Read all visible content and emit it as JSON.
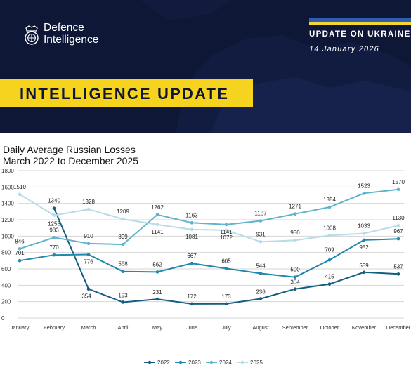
{
  "header": {
    "org_name_line1": "Defence",
    "org_name_line2": "Intelligence",
    "update_title": "UPDATE ON UKRAINE",
    "update_date": "14 January 2026",
    "banner_label": "INTELLIGENCE UPDATE",
    "colors": {
      "navy": "#0f1736",
      "yellow": "#f5d31f",
      "flag_blue": "#2f5db3",
      "flag_yellow": "#f3d72d"
    }
  },
  "chart_data": {
    "type": "line",
    "title_line1": "Daily Average Russian Losses",
    "title_line2": "March 2022 to December 2025",
    "xlabel": "",
    "ylabel": "",
    "categories": [
      "January",
      "February",
      "March",
      "April",
      "May",
      "June",
      "July",
      "August",
      "September",
      "October",
      "November",
      "December"
    ],
    "ylim": [
      0,
      1800
    ],
    "yticks": [
      0,
      200,
      400,
      600,
      800,
      1000,
      1200,
      1400,
      1600,
      1800
    ],
    "grid": true,
    "legend": "bottom",
    "series": [
      {
        "name": "2022",
        "color": "#145e82",
        "values": [
          null,
          1340,
          354,
          193,
          231,
          172,
          173,
          236,
          354,
          415,
          559,
          537
        ]
      },
      {
        "name": "2023",
        "color": "#1e88ad",
        "values": [
          701,
          770,
          776,
          568,
          562,
          667,
          605,
          544,
          500,
          709,
          952,
          967
        ]
      },
      {
        "name": "2024",
        "color": "#5fb3cc",
        "values": [
          846,
          983,
          910,
          899,
          1262,
          1163,
          1141,
          1187,
          1271,
          1354,
          1523,
          1570
        ]
      },
      {
        "name": "2025",
        "color": "#b8dbe8",
        "values": [
          1510,
          1255,
          1328,
          1209,
          1141,
          1081,
          1072,
          931,
          950,
          1008,
          1033,
          1130
        ]
      }
    ]
  }
}
